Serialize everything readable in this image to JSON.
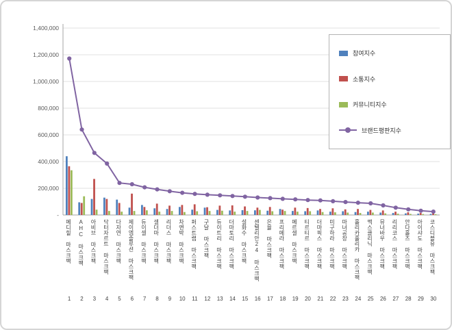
{
  "chart_data": {
    "type": "bar",
    "title": "",
    "grid": true,
    "legend_position": "top-right",
    "ylim": [
      0,
      1400000
    ],
    "ytick_interval": 200000,
    "ytick_labels": [
      "-",
      "200,000",
      "400,000",
      "600,000",
      "800,000",
      "1,000,000",
      "1,200,000",
      "1,400,000"
    ],
    "ranks": [
      1,
      2,
      3,
      4,
      5,
      6,
      7,
      8,
      9,
      10,
      11,
      12,
      13,
      14,
      15,
      16,
      17,
      18,
      19,
      20,
      21,
      22,
      23,
      24,
      25,
      26,
      27,
      28,
      29,
      30
    ],
    "categories": [
      "메디힐 마스크팩",
      "AHC 마스크팩",
      "아비브 마스크팩",
      "닥터자르트 마스크팩",
      "다자연 마스크팩",
      "제이엠솔루션 마스크팩",
      "듀이셀 마스크팩",
      "셀더마 마스크팩",
      "리더스 마스크팩",
      "차앤박 마스크팩",
      "퍼스트랩 마스크팩",
      "구달 마스크팩",
      "듀이트리 마스크팩",
      "더마토리 마스크팩",
      "설화수 마스크팩",
      "센텔리안24 마스크팩",
      "은율 마스크팩",
      "프리메라 마스크팩",
      "메르셀 마스크팩",
      "티르티르 마스크팩",
      "더마픽스 마스크팩",
      "미구하라 마스크팩",
      "마녀공장 마스크팩",
      "홀리카홀리카 마스크팩",
      "맥스클리닉 마스크팩",
      "뮤너바우 마스크팩",
      "리리코스 마스크팩",
      "안다홀츠 마스크팩",
      "아이샤도 마스크팩",
      "코스디블유 마스크팩"
    ],
    "series": [
      {
        "name": "참여지수",
        "type": "bar",
        "color": "#4F81BD",
        "values": [
          440000,
          95000,
          120000,
          130000,
          115000,
          55000,
          75000,
          50000,
          45000,
          60000,
          40000,
          55000,
          38000,
          34000,
          36000,
          35000,
          32000,
          45000,
          30000,
          28000,
          34000,
          25000,
          28000,
          22000,
          25000,
          18000,
          15000,
          12000,
          10000,
          8000
        ]
      },
      {
        "name": "소통지수",
        "type": "bar",
        "color": "#C0504D",
        "values": [
          365000,
          90000,
          270000,
          120000,
          90000,
          160000,
          60000,
          85000,
          70000,
          75000,
          80000,
          58000,
          70000,
          72000,
          64000,
          55000,
          60000,
          40000,
          55000,
          52000,
          45000,
          50000,
          42000,
          45000,
          38000,
          34000,
          25000,
          20000,
          15000,
          12000
        ]
      },
      {
        "name": "커뮤니티지수",
        "type": "bar",
        "color": "#9BBB59",
        "values": [
          335000,
          140000,
          40000,
          30000,
          25000,
          30000,
          35000,
          25000,
          30000,
          22000,
          28000,
          30000,
          32000,
          25000,
          30000,
          38000,
          28000,
          30000,
          25000,
          28000,
          22000,
          20000,
          18000,
          15000,
          18000,
          12000,
          10000,
          8000,
          7000,
          6000
        ]
      },
      {
        "name": "브랜드평판지수",
        "type": "line",
        "color": "#8064A2",
        "values": [
          1172000,
          640000,
          465000,
          385000,
          240000,
          230000,
          207000,
          192000,
          178000,
          166000,
          158000,
          152000,
          147000,
          142000,
          137000,
          131000,
          126000,
          121000,
          117000,
          112000,
          109000,
          103000,
          97000,
          92000,
          87000,
          72000,
          55000,
          42000,
          32000,
          25000
        ]
      }
    ]
  }
}
